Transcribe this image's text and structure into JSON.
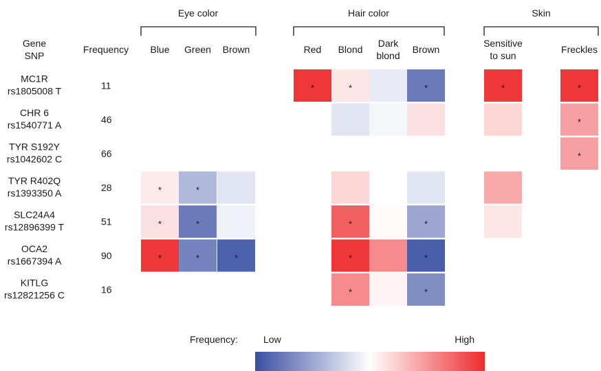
{
  "chart_data": {
    "type": "heatmap",
    "header_left": {
      "gene": "Gene",
      "snp": "SNP",
      "frequency": "Frequency"
    },
    "groups": [
      {
        "name": "Eye color",
        "columns": [
          "Blue",
          "Green",
          "Brown"
        ]
      },
      {
        "name": "Hair color",
        "columns": [
          "Red",
          "Blond",
          "Dark\nblond",
          "Brown"
        ]
      },
      {
        "name": "Skin",
        "columns": [
          "Sensitive\nto sun",
          "Freckles"
        ]
      }
    ],
    "rows": [
      {
        "gene": "MC1R",
        "snp": "rs1805008 T",
        "frequency": "11"
      },
      {
        "gene": "CHR 6",
        "snp": "rs1540771 A",
        "frequency": "46"
      },
      {
        "gene": "TYR S192Y",
        "snp": "rs1042602 C",
        "frequency": "66"
      },
      {
        "gene": "TYR R402Q",
        "snp": "rs1393350 A",
        "frequency": "28"
      },
      {
        "gene": "SLC24A4",
        "snp": "rs12896399 T",
        "frequency": "51"
      },
      {
        "gene": "OCA2",
        "snp": "rs1667394  A",
        "frequency": "90"
      },
      {
        "gene": "KITLG",
        "snp": "rs12821256 C",
        "frequency": "16"
      }
    ],
    "value_scale": [
      -1,
      1
    ],
    "significance_marker": "*",
    "values": [
      [
        null,
        null,
        null,
        0.95,
        0.12,
        -0.12,
        -0.75,
        0.95,
        0.95
      ],
      [
        null,
        null,
        null,
        null,
        -0.15,
        -0.05,
        0.15,
        0.2,
        0.45
      ],
      [
        null,
        null,
        null,
        null,
        null,
        null,
        null,
        null,
        0.45
      ],
      [
        0.1,
        -0.4,
        -0.15,
        null,
        0.2,
        null,
        -0.15,
        0.4,
        null
      ],
      [
        0.15,
        -0.75,
        -0.08,
        null,
        0.75,
        0.02,
        -0.5,
        0.12,
        null
      ],
      [
        0.95,
        -0.7,
        -0.9,
        null,
        0.95,
        0.55,
        -0.92,
        null,
        null
      ],
      [
        null,
        null,
        null,
        null,
        0.55,
        0.05,
        -0.65,
        null,
        null
      ]
    ],
    "significant": [
      [
        false,
        false,
        false,
        true,
        true,
        false,
        true,
        true,
        true
      ],
      [
        false,
        false,
        false,
        false,
        false,
        false,
        false,
        false,
        true
      ],
      [
        false,
        false,
        false,
        false,
        false,
        false,
        false,
        false,
        true
      ],
      [
        true,
        true,
        false,
        false,
        false,
        false,
        false,
        false,
        false
      ],
      [
        true,
        true,
        false,
        false,
        true,
        false,
        true,
        false,
        false
      ],
      [
        true,
        true,
        true,
        false,
        true,
        false,
        true,
        false,
        false
      ],
      [
        false,
        false,
        false,
        false,
        true,
        false,
        true,
        false,
        false
      ]
    ],
    "legend": {
      "label": "Frequency:",
      "low": "Low",
      "high": "High",
      "colors": [
        "#3a4fa3",
        "#ffffff",
        "#ee2b2e"
      ]
    }
  }
}
